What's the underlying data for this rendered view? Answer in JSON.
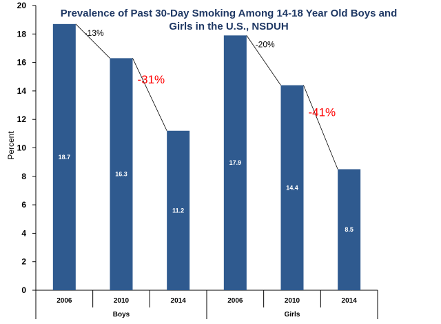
{
  "chart_data": {
    "type": "bar",
    "title_lines": [
      "Prevalence of Past 30-Day Smoking Among 14-18 Year Old Boys and",
      "Girls in the U.S., NSDUH"
    ],
    "ylabel": "Percent",
    "ylim": [
      0,
      20
    ],
    "yticks": [
      "0",
      "2",
      "4",
      "6",
      "8",
      "10",
      "12",
      "14",
      "16",
      "18",
      "20"
    ],
    "grid": false,
    "legend": "none",
    "bar_color": "#2f5a8f",
    "groups": [
      {
        "name": "Boys",
        "categories": [
          "2006",
          "2010",
          "2014"
        ],
        "values": [
          18.7,
          16.3,
          11.2
        ],
        "labels": [
          "18.7",
          "16.3",
          "11.2"
        ],
        "change_small": "-13%",
        "change_big": "-31%"
      },
      {
        "name": "Girls",
        "categories": [
          "2006",
          "2010",
          "2014"
        ],
        "values": [
          17.9,
          14.4,
          8.5
        ],
        "labels": [
          "17.9",
          "14.4",
          "8.5"
        ],
        "change_small": "-20%",
        "change_big": "-41%"
      }
    ]
  }
}
